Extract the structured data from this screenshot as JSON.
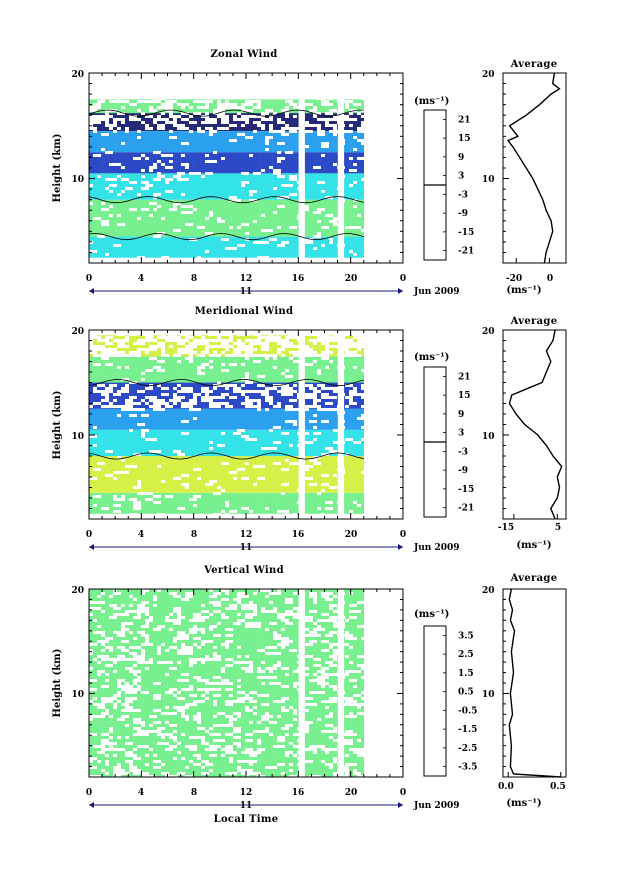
{
  "figure": {
    "xlabel": "Local Time",
    "date_label": "Jun 2009",
    "day_label": "11",
    "average_title": "Average",
    "colorbar_unit": "(ms⁻¹)",
    "profile_unit": "(ms⁻¹)"
  },
  "chart_data": [
    {
      "type": "heatmap",
      "title": "Zonal Wind",
      "ylabel": "Height (km)",
      "xlabel": "",
      "x_ticks": [
        "0",
        "4",
        "8",
        "12",
        "16",
        "20",
        "0"
      ],
      "xlim": [
        0,
        24
      ],
      "ylim": [
        2,
        20
      ],
      "y_ticks": [
        "10",
        "20"
      ],
      "data_gaps_hours": [
        [
          16.0,
          16.5
        ],
        [
          18.8,
          19.3
        ],
        [
          21.0,
          24.0
        ]
      ],
      "colorbar": {
        "unit": "(ms⁻¹)",
        "ticks": [
          "21",
          "15",
          "9",
          "3",
          "-3",
          "-9",
          "-15",
          "-21"
        ],
        "range": [
          -24,
          24
        ],
        "zero_contour": true
      },
      "layers": [
        {
          "height_km": [
            2.5,
            4.5
          ],
          "value": -3
        },
        {
          "height_km": [
            4.5,
            8.0
          ],
          "value": 3
        },
        {
          "height_km": [
            8.0,
            10.5
          ],
          "value": -6
        },
        {
          "height_km": [
            10.5,
            12.5
          ],
          "value": -18
        },
        {
          "height_km": [
            12.5,
            14.5
          ],
          "value": -12
        },
        {
          "height_km": [
            14.5,
            16.2
          ],
          "value": -21
        },
        {
          "height_km": [
            16.2,
            17.5
          ],
          "value": 3
        }
      ],
      "average_profile": {
        "title": "Average",
        "x_ticks": [
          "-20",
          "0"
        ],
        "xlim": [
          -28,
          10
        ],
        "unit": "(ms⁻¹)",
        "points": [
          [
            -3,
            2
          ],
          [
            -2,
            3
          ],
          [
            0,
            4
          ],
          [
            2,
            5
          ],
          [
            1,
            6
          ],
          [
            -2,
            7
          ],
          [
            -4,
            8
          ],
          [
            -7,
            9
          ],
          [
            -10,
            10
          ],
          [
            -14,
            11
          ],
          [
            -18,
            12
          ],
          [
            -22,
            13
          ],
          [
            -25,
            13.6
          ],
          [
            -19,
            14
          ],
          [
            -24,
            15
          ],
          [
            -14,
            16
          ],
          [
            -6,
            17
          ],
          [
            1,
            18
          ],
          [
            6,
            18.5
          ],
          [
            2,
            19
          ],
          [
            3,
            20
          ]
        ]
      }
    },
    {
      "type": "heatmap",
      "title": "Meridional Wind",
      "ylabel": "Height (km)",
      "xlabel": "",
      "x_ticks": [
        "0",
        "4",
        "8",
        "12",
        "16",
        "20",
        "0"
      ],
      "xlim": [
        0,
        24
      ],
      "ylim": [
        2,
        20
      ],
      "y_ticks": [
        "10",
        "20"
      ],
      "data_gaps_hours": [
        [
          16.0,
          16.5
        ],
        [
          18.8,
          19.3
        ],
        [
          21.0,
          24.0
        ]
      ],
      "colorbar": {
        "unit": "(ms⁻¹)",
        "ticks": [
          "21",
          "15",
          "9",
          "3",
          "-3",
          "-9",
          "-15",
          "-21"
        ],
        "range": [
          -24,
          24
        ],
        "zero_contour": true
      },
      "layers": [
        {
          "height_km": [
            2.5,
            4.5
          ],
          "value": 1
        },
        {
          "height_km": [
            4.5,
            8.0
          ],
          "value": 6
        },
        {
          "height_km": [
            8.0,
            10.5
          ],
          "value": -4
        },
        {
          "height_km": [
            10.5,
            12.5
          ],
          "value": -9
        },
        {
          "height_km": [
            12.5,
            15.0
          ],
          "value": -16
        },
        {
          "height_km": [
            15.0,
            17.5
          ],
          "value": 2
        },
        {
          "height_km": [
            17.5,
            19.5
          ],
          "value": 6
        }
      ],
      "average_profile": {
        "title": "Average",
        "x_ticks": [
          "-15",
          "5"
        ],
        "xlim": [
          -20,
          9
        ],
        "unit": "(ms⁻¹)",
        "points": [
          [
            4,
            2
          ],
          [
            2,
            3
          ],
          [
            5,
            4
          ],
          [
            6,
            5
          ],
          [
            5,
            6
          ],
          [
            7,
            7
          ],
          [
            3,
            8
          ],
          [
            0,
            9
          ],
          [
            -4,
            10
          ],
          [
            -10,
            11
          ],
          [
            -14,
            12
          ],
          [
            -17,
            13
          ],
          [
            -16,
            13.8
          ],
          [
            -8,
            14.5
          ],
          [
            -2,
            15
          ],
          [
            0,
            16
          ],
          [
            2,
            17
          ],
          [
            0,
            18
          ],
          [
            3,
            19
          ],
          [
            4,
            20
          ]
        ]
      }
    },
    {
      "type": "heatmap",
      "title": "Vertical Wind",
      "ylabel": "Height (km)",
      "xlabel": "Local Time",
      "x_ticks": [
        "0",
        "4",
        "8",
        "12",
        "16",
        "20",
        "0"
      ],
      "xlim": [
        0,
        24
      ],
      "ylim": [
        2,
        20
      ],
      "y_ticks": [
        "10",
        "20"
      ],
      "data_gaps_hours": [
        [
          16.0,
          16.5
        ],
        [
          18.8,
          19.3
        ],
        [
          21.0,
          24.0
        ]
      ],
      "colorbar": {
        "unit": "(ms⁻¹)",
        "ticks": [
          "3.5",
          "2.5",
          "1.5",
          "0.5",
          "-0.5",
          "-1.5",
          "-2.5",
          "-3.5"
        ],
        "range": [
          -4,
          4
        ],
        "zero_contour": false
      },
      "layers": [
        {
          "height_km": [
            2.0,
            20.0
          ],
          "value": 0.1
        }
      ],
      "average_profile": {
        "title": "Average",
        "x_ticks": [
          "0.0",
          "0.5"
        ],
        "xlim": [
          -0.05,
          0.55
        ],
        "unit": "(ms⁻¹)",
        "points": [
          [
            0.5,
            2
          ],
          [
            0.05,
            2.3
          ],
          [
            0.02,
            3
          ],
          [
            0.03,
            5
          ],
          [
            0.01,
            7
          ],
          [
            0.04,
            8
          ],
          [
            0.02,
            10
          ],
          [
            0.05,
            12
          ],
          [
            0.03,
            14
          ],
          [
            0.06,
            16
          ],
          [
            0.02,
            17
          ],
          [
            0.04,
            18
          ],
          [
            0.01,
            19
          ],
          [
            0.03,
            20
          ]
        ]
      }
    }
  ]
}
